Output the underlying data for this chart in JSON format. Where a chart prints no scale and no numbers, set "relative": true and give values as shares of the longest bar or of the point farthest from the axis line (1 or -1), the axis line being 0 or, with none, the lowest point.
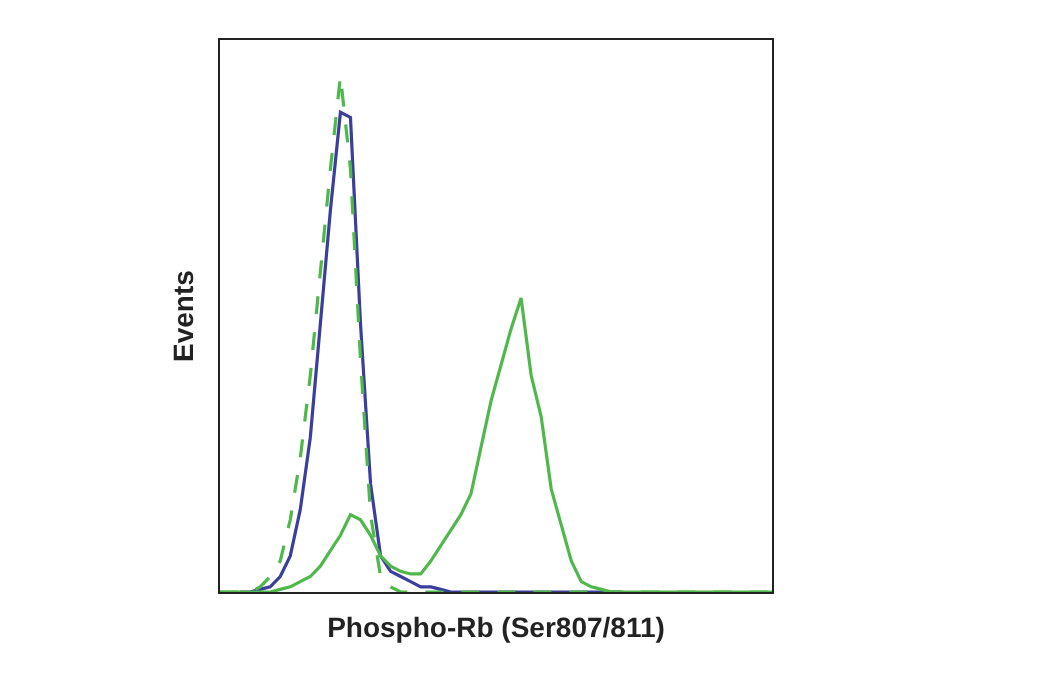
{
  "chart_data": {
    "type": "line",
    "relative": true,
    "xlabel": "Phospho-Rb (Ser807/811)",
    "ylabel": "Events",
    "grid": false,
    "categories": [
      null,
      null,
      null,
      null,
      null,
      null,
      null,
      null,
      null,
      null,
      null,
      null,
      null,
      null,
      null,
      null,
      null,
      null,
      null,
      null,
      null,
      null,
      null,
      null,
      null,
      null,
      null,
      null,
      null,
      null,
      null,
      null,
      null,
      null,
      null,
      null,
      null,
      null,
      null,
      null,
      null,
      null,
      null,
      null,
      null,
      null,
      null,
      null,
      null,
      null,
      null,
      null,
      null,
      null,
      null,
      null
    ],
    "series": [
      {
        "color": "#3b3f9c",
        "line_style": "solid",
        "values": [
          null,
          null,
          0,
          0,
          0.005,
          0.01,
          0.03,
          0.07,
          0.16,
          0.3,
          0.52,
          0.74,
          0.93,
          0.92,
          0.52,
          0.21,
          0.07,
          0.04,
          0.03,
          0.02,
          0.01,
          0.01,
          0.005,
          0,
          0,
          0,
          0,
          0,
          0,
          0,
          0,
          0,
          0,
          0,
          0,
          0,
          0,
          0,
          0,
          0,
          0,
          null,
          null,
          null,
          null,
          null,
          null,
          null,
          null,
          null,
          null,
          null,
          null,
          null,
          null,
          null
        ]
      },
      {
        "color": "#4fb84a",
        "line_style": "dashed",
        "values": [
          0,
          0,
          0,
          0,
          0.01,
          0.03,
          0.06,
          0.14,
          0.26,
          0.42,
          0.62,
          0.82,
          1,
          0.82,
          0.45,
          0.15,
          0.03,
          0.01,
          0,
          0,
          0,
          0,
          0,
          0,
          0,
          0,
          0,
          0,
          0,
          0,
          0,
          0,
          0,
          0,
          0,
          0,
          0,
          0,
          0,
          0,
          0,
          0,
          0,
          0,
          0,
          0,
          0,
          0,
          0,
          0,
          0,
          0,
          0,
          0,
          0,
          0
        ]
      },
      {
        "color": "#4fb84a",
        "line_style": "solid",
        "values": [
          0,
          0,
          0,
          0,
          0,
          0,
          0.005,
          0.01,
          0.02,
          0.03,
          0.05,
          0.08,
          0.11,
          0.15,
          0.14,
          0.11,
          0.07,
          0.05,
          0.04,
          0.035,
          0.035,
          0.06,
          0.09,
          0.12,
          0.15,
          0.19,
          0.28,
          0.37,
          0.44,
          0.51,
          0.57,
          0.42,
          0.34,
          0.2,
          0.13,
          0.06,
          0.02,
          0.01,
          0.005,
          0,
          0,
          0,
          0,
          0,
          0,
          0,
          0,
          0,
          0,
          0,
          0,
          0,
          0,
          0,
          0,
          0
        ]
      }
    ]
  }
}
